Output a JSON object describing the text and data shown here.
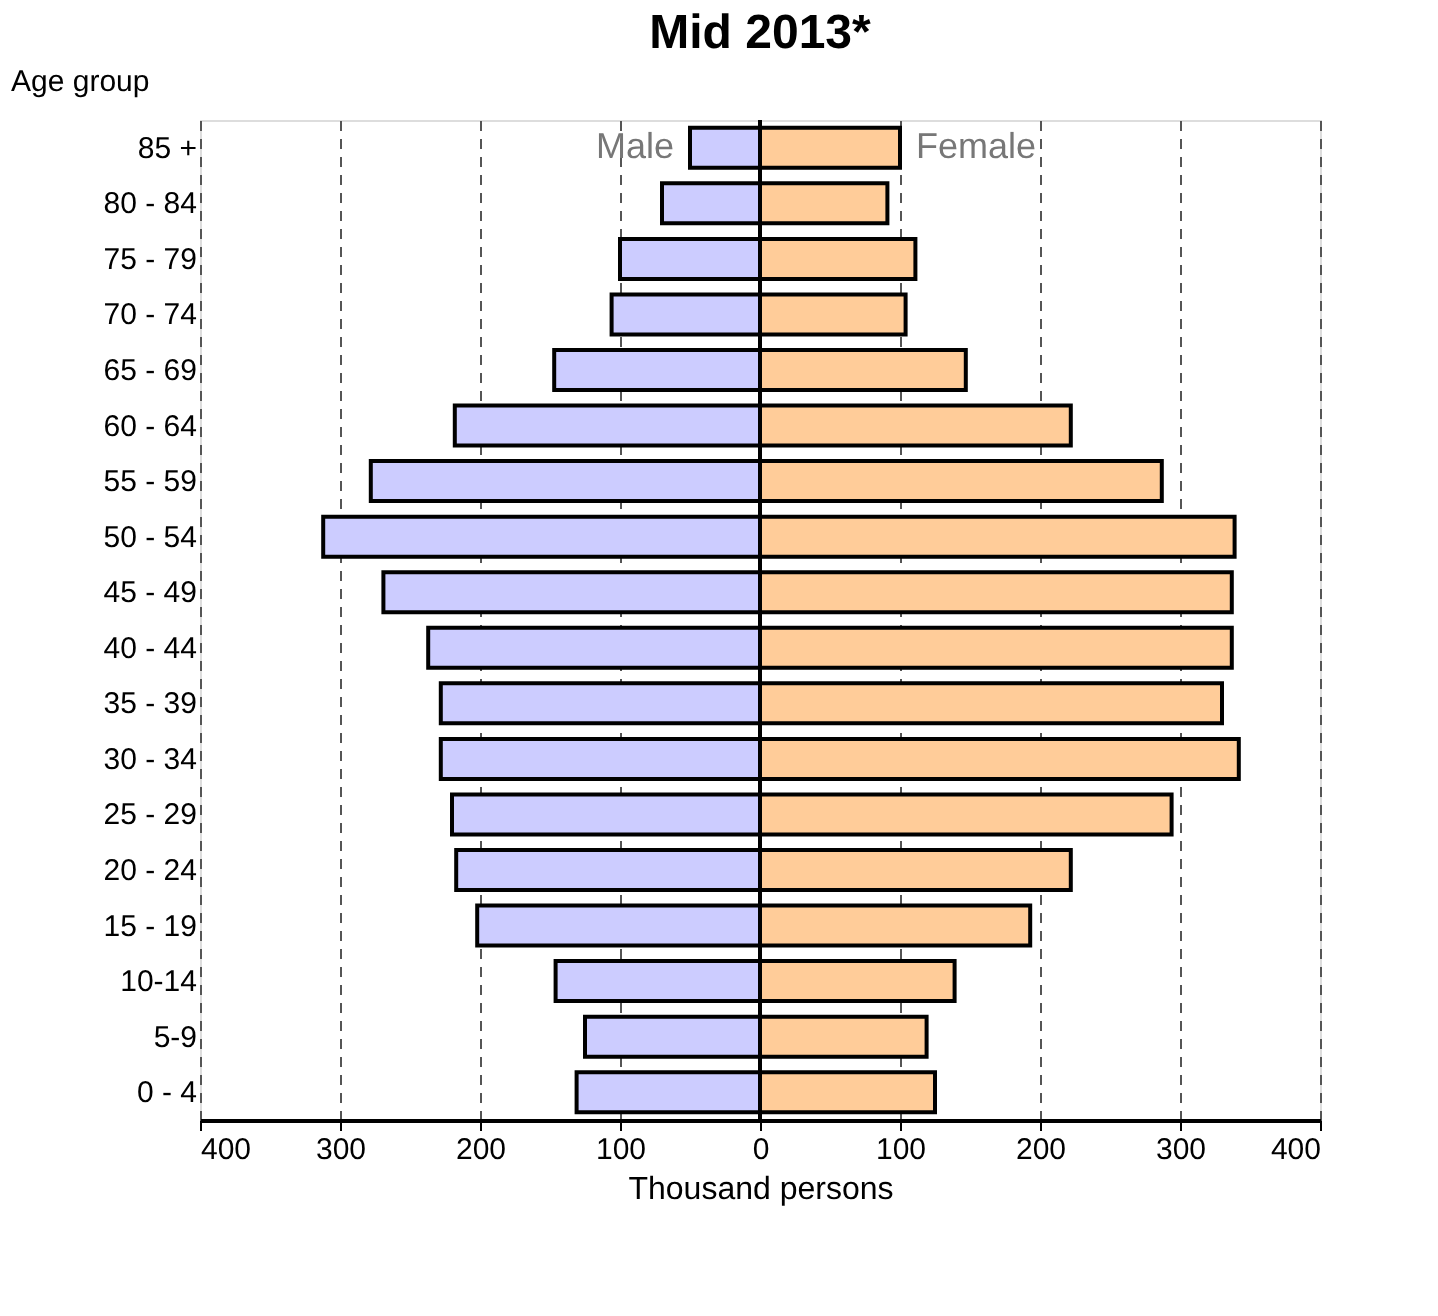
{
  "chart_data": {
    "type": "bar",
    "orientation": "horizontal",
    "title": "Mid 2013*",
    "xlabel": "Thousand persons",
    "ylabel": "Age group",
    "categories": [
      "85 +",
      "80 - 84",
      "75 - 79",
      "70 - 74",
      "65 - 69",
      "60 - 64",
      "55 - 59",
      "50 - 54",
      "45 - 49",
      "40 - 44",
      "35 - 39",
      "30 - 34",
      "25 - 29",
      "20 - 24",
      "15 - 19",
      "10-14",
      "5-9",
      "0 - 4"
    ],
    "series": [
      {
        "name": "Male",
        "color": "#ccccff",
        "values": [
          -50,
          -70,
          -100,
          -106,
          -147,
          -218,
          -278,
          -312,
          -269,
          -237,
          -228,
          -228,
          -220,
          -217,
          -202,
          -146,
          -125,
          -131
        ]
      },
      {
        "name": "Female",
        "color": "#ffcc99",
        "values": [
          100,
          91,
          111,
          104,
          147,
          222,
          287,
          339,
          337,
          337,
          330,
          342,
          294,
          222,
          193,
          139,
          119,
          125
        ]
      }
    ],
    "xlim": [
      -400,
      400
    ],
    "xticks": [
      {
        "value": -400,
        "label": "400"
      },
      {
        "value": -300,
        "label": "300"
      },
      {
        "value": -200,
        "label": "200"
      },
      {
        "value": -100,
        "label": "100"
      },
      0,
      100,
      200,
      300,
      400
    ],
    "grid": "x",
    "stacked": true,
    "legend": false
  }
}
